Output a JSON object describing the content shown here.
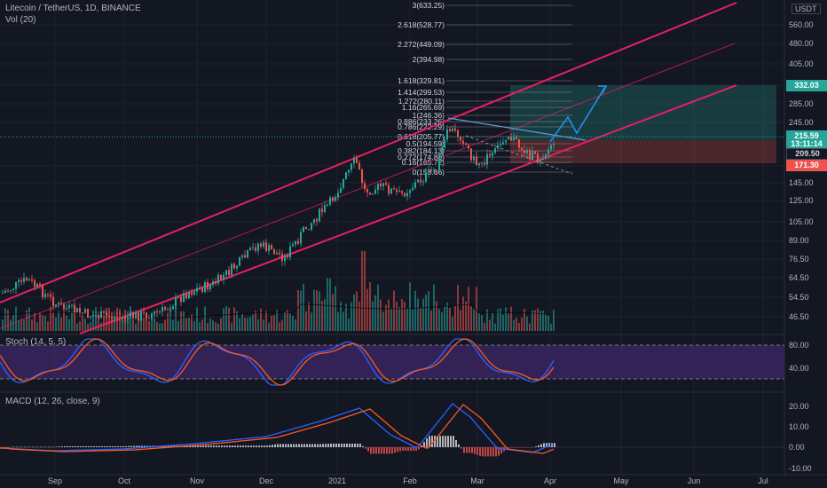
{
  "header": {
    "title": "Litecoin / TetherUS, 1D, BINANCE",
    "volume": "Vol (20)",
    "currency": "USDT"
  },
  "indicators": {
    "stoch_label": "Stoch (14, 5, 5)",
    "macd_label": "MACD (12, 26, close, 9)"
  },
  "price_axis": {
    "ticks": [
      "560.00",
      "480.00",
      "405.00",
      "345.00",
      "285.00",
      "245.00",
      "175.00",
      "145.00",
      "125.00",
      "105.00",
      "89.00",
      "76.50",
      "64.50",
      "54.50",
      "46.50"
    ]
  },
  "stoch_axis": {
    "ticks": [
      "80.00",
      "40.00"
    ]
  },
  "macd_axis": {
    "ticks": [
      "20.00",
      "10.00",
      "0.00",
      "-10.00"
    ]
  },
  "time_axis": {
    "labels": [
      "Sep",
      "Oct",
      "Nov",
      "Dec",
      "2021",
      "Feb",
      "Mar",
      "Apr",
      "May",
      "Jun",
      "Jul"
    ]
  },
  "price_tags": [
    {
      "value": "332.03",
      "color": "#26a69a"
    },
    {
      "value": "215.59",
      "color": "#26a69a"
    },
    {
      "value": "13:11:14",
      "color": "#26a69a"
    },
    {
      "value": "209.50",
      "color": "#131722"
    },
    {
      "value": "171.30",
      "color": "#ef5350"
    }
  ],
  "fib_levels": [
    {
      "label": "3(633.25)"
    },
    {
      "label": "2.618(528.77)"
    },
    {
      "label": "2.272(449.09)"
    },
    {
      "label": "2(394.98)"
    },
    {
      "label": "1.618(329.81)"
    },
    {
      "label": "1.414(299.53)"
    },
    {
      "label": "1.272(280.11)"
    },
    {
      "label": "1.16(265.69)"
    },
    {
      "label": "1(246.36)"
    },
    {
      "label": "0.886(233.26)"
    },
    {
      "label": "0.786(222.29)"
    },
    {
      "label": "0.618(205.77)"
    },
    {
      "label": "0.5(194.59)"
    },
    {
      "label": "0.382(184.13)"
    },
    {
      "label": "0.272(174.86)"
    },
    {
      "label": "0.16(165.72)"
    },
    {
      "label": "0(153.66)"
    }
  ],
  "colors": {
    "background": "#131722",
    "up": "#26a69a",
    "down": "#ef5350",
    "channel": "#e91e63",
    "stoch_k": "#2962ff",
    "stoch_d": "#ff5722",
    "stoch_band": "#4a2a7a",
    "projection": "#2196f3"
  }
}
